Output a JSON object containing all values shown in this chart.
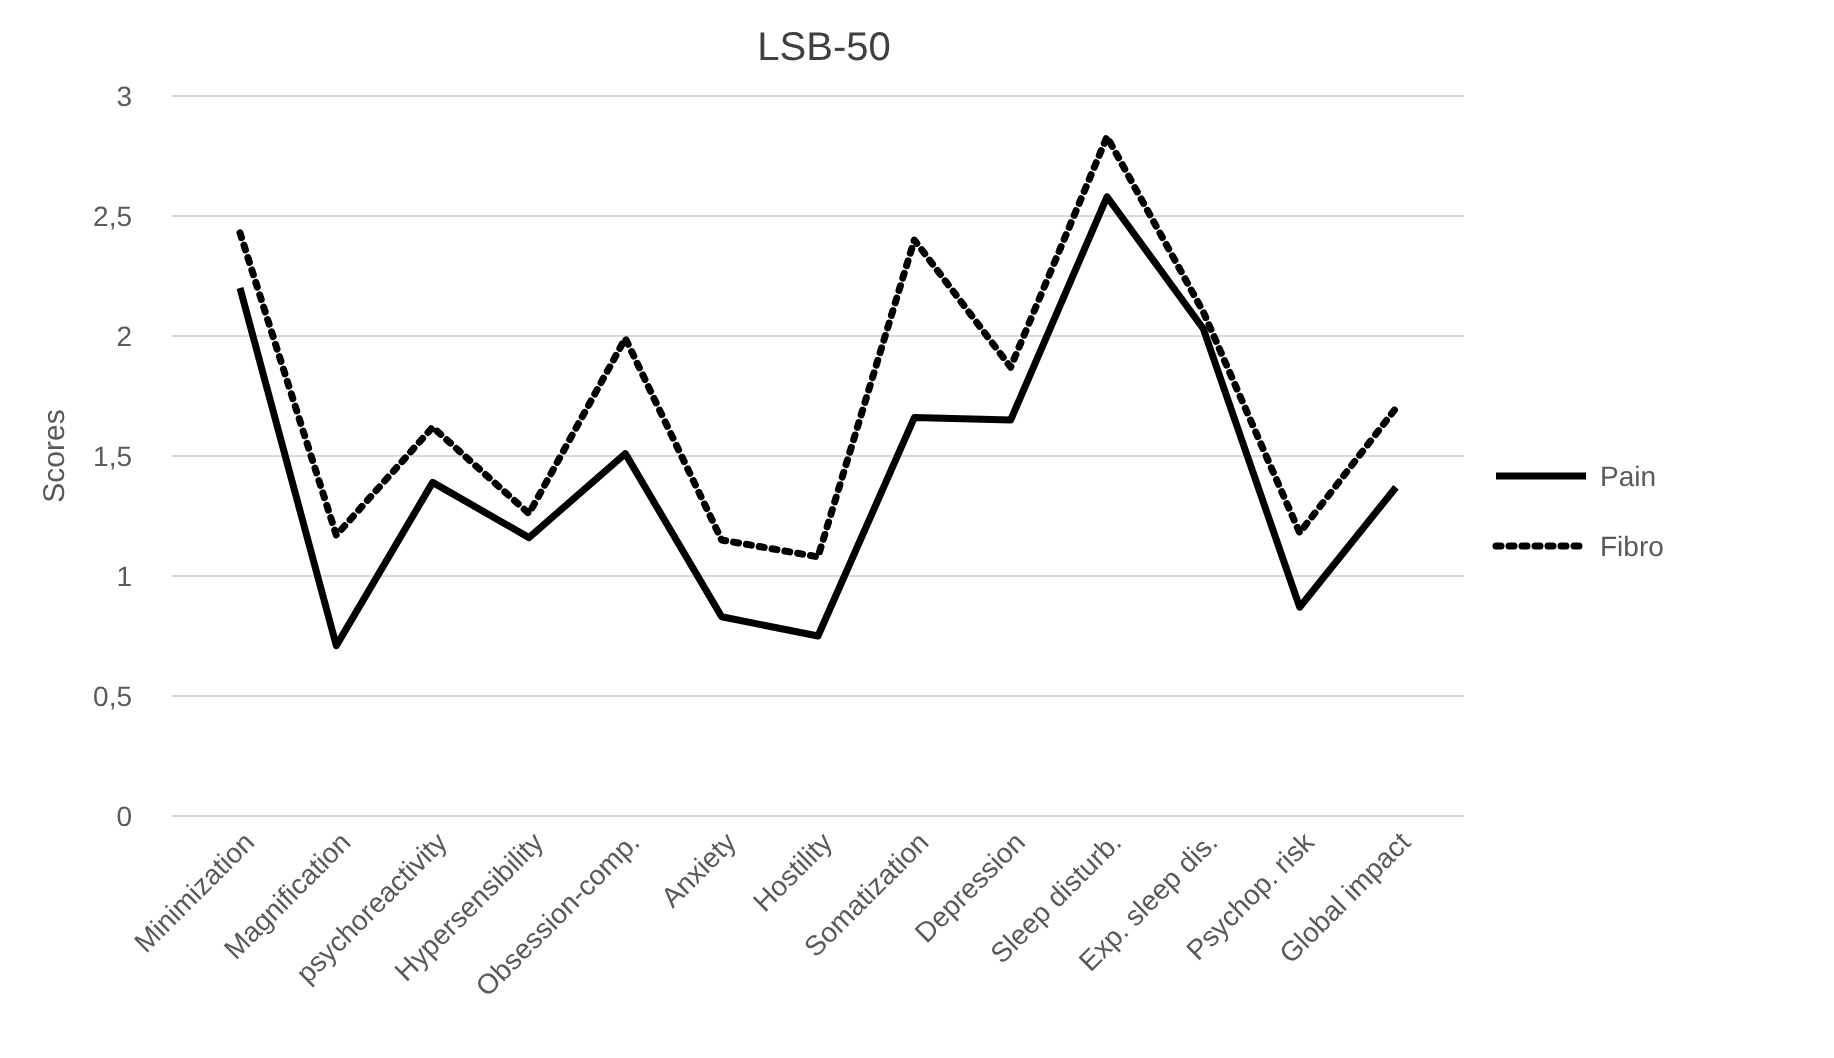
{
  "chart_data": {
    "type": "line",
    "title": "LSB-50",
    "ylabel": "Scores",
    "categories": [
      "Minimization",
      "Magnification",
      "psychoreactivity",
      "Hypersensibility",
      "Obsession-comp.",
      "Anxiety",
      "Hostility",
      "Somatization",
      "Depression",
      "Sleep disturb.",
      "Exp. sleep dis.",
      "Psychop. risk",
      "Global impact"
    ],
    "series": [
      {
        "name": "Pain",
        "color": "#000000",
        "line_style": "solid",
        "values": [
          2.2,
          0.71,
          1.39,
          1.16,
          1.51,
          0.83,
          0.75,
          1.66,
          1.65,
          2.58,
          2.03,
          0.87,
          1.37
        ]
      },
      {
        "name": "Fibro",
        "color": "#000000",
        "line_style": "dotted",
        "values": [
          2.43,
          1.17,
          1.62,
          1.26,
          1.99,
          1.15,
          1.08,
          2.4,
          1.87,
          2.83,
          2.1,
          1.18,
          1.7
        ]
      }
    ],
    "ylim": [
      0,
      3
    ],
    "yticks": [
      0,
      {
        "value": 0.5,
        "label": "0,5"
      },
      1,
      {
        "value": 1.5,
        "label": "1,5"
      },
      2,
      {
        "value": 2.5,
        "label": "2,5"
      },
      3
    ],
    "grid": "y",
    "legend": "right",
    "marker": "none"
  }
}
